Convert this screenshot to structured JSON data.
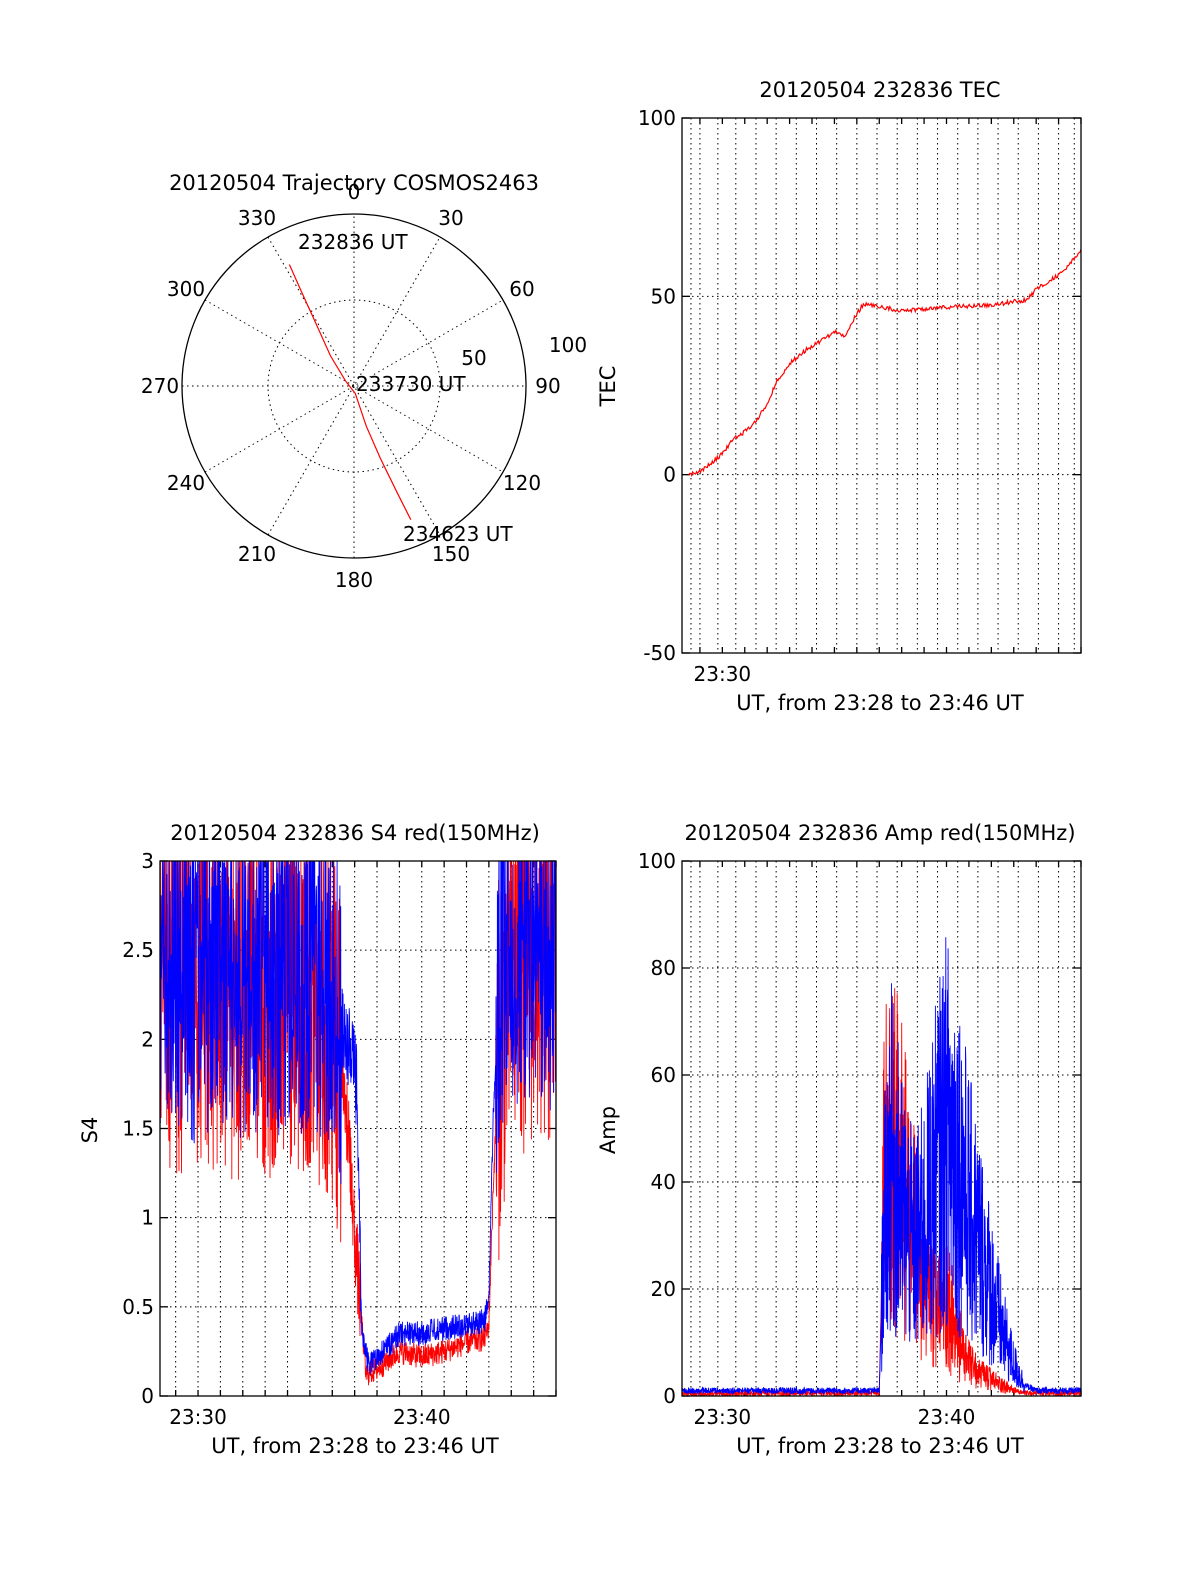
{
  "chart_data": [
    {
      "type": "polar-trajectory",
      "title": "20120504 Trajectory COSMOS2463",
      "azimuth_labels": [
        "0",
        "30",
        "60",
        "90",
        "120",
        "150",
        "180",
        "210",
        "240",
        "270",
        "300",
        "330"
      ],
      "radius_labels": [
        "50",
        "100"
      ],
      "trajectory": {
        "color": "#ff0000",
        "points": [
          {
            "az": 332,
            "el": 18
          },
          {
            "az": 331,
            "el": 32
          },
          {
            "az": 329,
            "el": 50
          },
          {
            "az": 322,
            "el": 70
          },
          {
            "az": 300,
            "el": 85
          },
          {
            "az": 170,
            "el": 86
          },
          {
            "az": 163,
            "el": 68
          },
          {
            "az": 160,
            "el": 50
          },
          {
            "az": 158,
            "el": 30
          },
          {
            "az": 157,
            "el": 14
          }
        ]
      },
      "annotations": [
        "232836 UT",
        "233730 UT",
        "234623 UT"
      ]
    },
    {
      "type": "line",
      "title": "20120504 232836 TEC",
      "xlabel": "UT, from 23:28 to 23:46 UT",
      "ylabel": "TEC",
      "xlim": [
        28.2,
        46
      ],
      "ylim": [
        -50,
        100
      ],
      "yticks": [
        "-50",
        "0",
        "50",
        "100"
      ],
      "xticks": [
        {
          "x": 30,
          "label": "23:30"
        }
      ],
      "series": [
        {
          "color": "#ff0000",
          "x": [
            28.5,
            29.0,
            29.5,
            30.0,
            30.5,
            31.0,
            31.5,
            32.0,
            32.5,
            33.0,
            33.5,
            34.0,
            34.5,
            35.0,
            35.5,
            35.8,
            36.0,
            36.3,
            37.0,
            38.0,
            40.0,
            42.0,
            43.0,
            43.6,
            44.0,
            44.5,
            45.0,
            45.5,
            46.0
          ],
          "y": [
            0,
            1,
            3,
            6,
            10,
            12,
            15,
            20,
            27,
            31,
            34,
            36,
            38,
            40,
            39,
            43,
            45,
            48,
            47,
            46,
            47,
            47.5,
            48.5,
            49,
            52,
            54,
            56,
            59,
            63
          ]
        }
      ]
    },
    {
      "type": "line",
      "title": "20120504 232836 S4 red(150MHz)",
      "xlabel": "UT, from 23:28 to 23:46 UT",
      "ylabel": "S4",
      "xlim": [
        28.3,
        46
      ],
      "ylim": [
        0,
        3
      ],
      "yticks": [
        "0",
        "0.5",
        "1",
        "1.5",
        "2",
        "2.5",
        "3"
      ],
      "xticks": [
        {
          "x": 30,
          "label": "23:30"
        },
        {
          "x": 40,
          "label": "23:40"
        }
      ],
      "series": [
        {
          "color": "#ff0000",
          "x": [
            28.3,
            29,
            30,
            31,
            32,
            33,
            34,
            35,
            36,
            36.5,
            36.8,
            37.0,
            37.2,
            37.5,
            38,
            38.5,
            39,
            40,
            41,
            42,
            42.8,
            43.0,
            43.2,
            43.5,
            44,
            45,
            46
          ],
          "y": [
            2.3,
            2.3,
            2.3,
            2.3,
            2.3,
            2.3,
            2.3,
            2.3,
            2.2,
            1.8,
            1.3,
            0.9,
            0.6,
            0.12,
            0.15,
            0.2,
            0.25,
            0.22,
            0.25,
            0.3,
            0.32,
            0.4,
            1.2,
            2.0,
            2.4,
            2.5,
            2.4
          ]
        },
        {
          "color": "#0000ff",
          "x": [
            28.3,
            29,
            30,
            31,
            32,
            33,
            34,
            35,
            36,
            36.5,
            36.9,
            37.1,
            37.3,
            37.6,
            38,
            38.5,
            39,
            40,
            41,
            42,
            42.8,
            43.0,
            43.2,
            43.5,
            44,
            45,
            46
          ],
          "y": [
            2.4,
            2.4,
            2.3,
            2.4,
            2.3,
            2.4,
            2.3,
            2.4,
            2.3,
            2.0,
            1.9,
            1.7,
            0.4,
            0.18,
            0.22,
            0.28,
            0.35,
            0.35,
            0.38,
            0.4,
            0.42,
            0.55,
            1.6,
            2.3,
            2.5,
            2.5,
            2.4
          ]
        }
      ]
    },
    {
      "type": "line",
      "title": "20120504 232836 Amp red(150MHz)",
      "xlabel": "UT, from 23:28 to 23:46 UT",
      "ylabel": "Amp",
      "xlim": [
        28.2,
        46
      ],
      "ylim": [
        0,
        100
      ],
      "yticks": [
        "0",
        "20",
        "40",
        "60",
        "80",
        "100"
      ],
      "xticks": [
        {
          "x": 30,
          "label": "23:30"
        },
        {
          "x": 40,
          "label": "23:40"
        }
      ],
      "series": [
        {
          "color": "#ff0000",
          "x": [
            28.2,
            30,
            32,
            34,
            36,
            37.0,
            37.2,
            37.5,
            38,
            38.5,
            39,
            39.5,
            40,
            40.5,
            41,
            41.5,
            42,
            42.5,
            43,
            43.5,
            44,
            45,
            46
          ],
          "y": [
            0.5,
            0.5,
            0.5,
            0.5,
            0.5,
            0.5,
            40,
            48,
            40,
            30,
            20,
            15,
            18,
            10,
            6,
            4,
            3,
            2,
            1,
            0.5,
            0.5,
            0.5,
            0.5
          ]
        },
        {
          "color": "#0000ff",
          "x": [
            28.2,
            30,
            32,
            34,
            36,
            37.0,
            37.2,
            37.5,
            38,
            38.5,
            39,
            39.5,
            40,
            40.5,
            41,
            41.5,
            42,
            42.5,
            43,
            43.5,
            44,
            45,
            46
          ],
          "y": [
            1,
            1,
            1,
            1,
            1,
            1,
            30,
            45,
            35,
            28,
            32,
            42,
            50,
            45,
            35,
            28,
            20,
            12,
            6,
            2,
            1,
            1,
            1
          ]
        }
      ]
    }
  ]
}
